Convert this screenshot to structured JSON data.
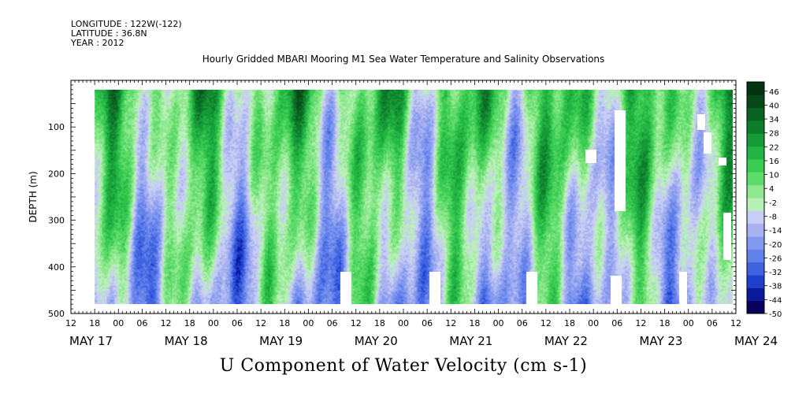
{
  "meta": {
    "longitude": "LONGITUDE : 122W(-122)",
    "latitude": "LATITUDE : 36.8N",
    "year": "YEAR : 2012"
  },
  "chart_data": {
    "type": "heatmap",
    "title": "Hourly Gridded MBARI Mooring M1 Sea Water Temperature and Salinity Observations",
    "xlabel": "U Component of Water Velocity (cm s-1)",
    "ylabel": "DEPTH (m)",
    "ylim": [
      500,
      0
    ],
    "y_ticks": [
      100,
      200,
      300,
      400,
      500
    ],
    "x_hour_ticks": [
      "12",
      "18",
      "00",
      "06",
      "12",
      "18",
      "00",
      "06",
      "12",
      "18",
      "00",
      "06",
      "12",
      "18",
      "00",
      "06",
      "12",
      "18",
      "00",
      "06",
      "12",
      "18",
      "00",
      "06",
      "12",
      "18",
      "00",
      "06",
      "12"
    ],
    "x_day_labels": [
      "MAY 17",
      "MAY 18",
      "MAY 19",
      "MAY 20",
      "MAY 21",
      "MAY 22",
      "MAY 23",
      "MAY 24"
    ],
    "colorbar": {
      "ticks": [
        46,
        40,
        34,
        28,
        22,
        16,
        10,
        4,
        -2,
        -8,
        -14,
        -20,
        -26,
        -32,
        -38,
        -44,
        -50
      ],
      "range": [
        -50,
        50
      ],
      "colors": [
        "#08005a",
        "#0a1a9a",
        "#1f3fcf",
        "#3e62e0",
        "#6180ea",
        "#8399f0",
        "#a8b2f0",
        "#c7cdf5",
        "#b8f0b8",
        "#8ee88e",
        "#5edb6a",
        "#3acb53",
        "#22b543",
        "#169a37",
        "#0e7d2b",
        "#0a6222",
        "#074818",
        "#043310"
      ]
    },
    "columns_per_day": 24,
    "depth_top": 20,
    "depth_bottom": 480,
    "start_hour": "May 17 12:00",
    "end_hour": "May 24 12:00"
  }
}
